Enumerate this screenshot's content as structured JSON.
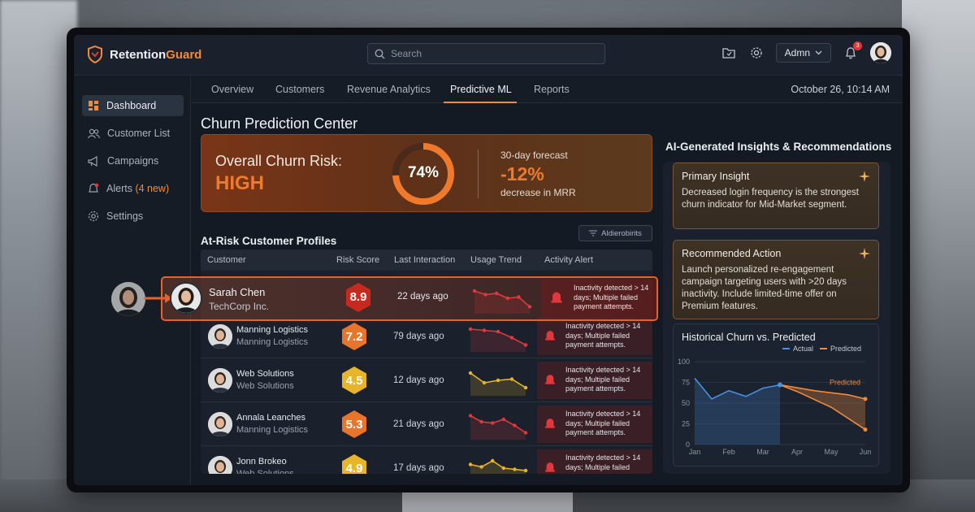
{
  "app": {
    "brand_prefix": "Retention",
    "brand_suffix": "Guard",
    "search_placeholder": "Search",
    "admin_label": "Admn",
    "notif_count": "3"
  },
  "sidebar": {
    "items": [
      {
        "label": "Dashboard",
        "icon": "dashboard-icon",
        "active": true
      },
      {
        "label": "Customer List",
        "icon": "users-icon",
        "active": false
      },
      {
        "label": "Campaigns",
        "icon": "megaphone-icon",
        "active": false
      },
      {
        "label": "Alerts",
        "badge": "(4 new)",
        "icon": "bell-icon",
        "active": false
      },
      {
        "label": "Settings",
        "icon": "gear-icon",
        "active": false
      }
    ]
  },
  "tabs": [
    "Overview",
    "Customers",
    "Revenue Analytics",
    "Predictive ML",
    "Reports"
  ],
  "active_tab": "Predictive ML",
  "datetime": "October 26, 10:14 AM",
  "page_title": "Churn Prediction Center",
  "risk": {
    "label": "Overall Churn Risk:",
    "level": "HIGH",
    "gauge_value": "74%",
    "gauge_fraction": 0.74,
    "forecast_label": "30-day forecast",
    "forecast_value": "-12%",
    "forecast_sub": "decrease in MRR"
  },
  "profiles": {
    "title": "At-Risk Customer Profiles",
    "filter_label": "Aldierobirits",
    "columns": [
      "Customer",
      "Risk Score",
      "Last Interaction",
      "Usage Trend",
      "Activity Alert"
    ],
    "highlight": {
      "name": "Sarah Chen",
      "company": "TechCorp Inc.",
      "score": "8.9",
      "last": "22 days ago",
      "alert": "Inactivity detected > 14 days; Multiple failed payment attempts."
    },
    "rows": [
      {
        "name": "Manning Logistics",
        "company": "Manning Logistics",
        "score": "7.2",
        "last": "79 days ago",
        "alert": "Inactivity detected > 14 days; Multiple failed payment attempts.",
        "trend": [
          0.2,
          0.25,
          0.3,
          0.55,
          0.85
        ],
        "level": "orange"
      },
      {
        "name": "Web Solutions",
        "company": "Web Solutions",
        "score": "4.5",
        "last": "12 days ago",
        "alert": "Inactivity detected > 14 days; Multiple failed payment attempts.",
        "trend": [
          0.2,
          0.6,
          0.5,
          0.45,
          0.8
        ],
        "level": "yellow"
      },
      {
        "name": "Annala Leanches",
        "company": "Manning Logistics",
        "score": "5.3",
        "last": "21 days ago",
        "alert": "Inactivity detected > 14 days; Multiple failed payment attempts.",
        "trend": [
          0.15,
          0.4,
          0.45,
          0.3,
          0.55,
          0.85
        ],
        "level": "orange"
      },
      {
        "name": "Jonn Brokeo",
        "company": "Web Solutions",
        "score": "4.9",
        "last": "17 days ago",
        "alert": "Inactivity detected > 14 days; Multiple failed",
        "trend": [
          0.35,
          0.45,
          0.2,
          0.5,
          0.55,
          0.6
        ],
        "level": "yellow"
      }
    ],
    "highlight_trend": [
      0.2,
      0.35,
      0.3,
      0.5,
      0.45,
      0.85
    ]
  },
  "insights": {
    "title": "AI-Generated Insights & Recommendations",
    "primary_title": "Primary Insight",
    "primary_body": "Decreased login frequency is the strongest churn indicator for Mid-Market segment.",
    "action_title": "Recommended Action",
    "action_body": "Launch personalized re-engagement campaign targeting users with >20 days inactivity. Include limited-time offer on Premium features."
  },
  "chart_data": {
    "type": "line",
    "title": "Historical Churn vs. Predicted",
    "categories": [
      "Jan",
      "Feb",
      "Mar",
      "Apr",
      "May",
      "Jun"
    ],
    "ylim": [
      0,
      100
    ],
    "yticks": [
      0,
      25,
      50,
      75,
      100
    ],
    "legend": "top-right",
    "annotation": "Predicted",
    "series": [
      {
        "name": "Actual",
        "color": "#4a90e2",
        "x": [
          0,
          0.5,
          1,
          1.5,
          2,
          2.5
        ],
        "values": [
          80,
          55,
          65,
          58,
          68,
          72
        ]
      },
      {
        "name": "Predicted",
        "color": "#f28a3a",
        "x": [
          2.5,
          3,
          4,
          5
        ],
        "values": [
          72,
          64,
          45,
          18
        ]
      },
      {
        "name": "Predicted",
        "color": "#f28a3a",
        "x": [
          2.5,
          3.5,
          4.5,
          5
        ],
        "values": [
          72,
          65,
          60,
          55
        ]
      }
    ]
  }
}
